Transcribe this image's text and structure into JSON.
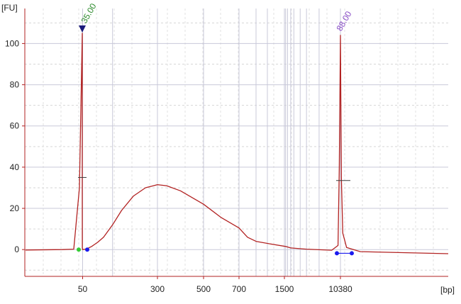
{
  "chart_data": {
    "type": "line",
    "y_unit": "[FU]",
    "x_unit": "[bp]",
    "ylim": [
      -13,
      117
    ],
    "y_ticks": [
      0,
      20,
      40,
      60,
      80,
      100
    ],
    "x_ticks": [
      {
        "label": "50",
        "bp": 50
      },
      {
        "label": "300",
        "bp": 300
      },
      {
        "label": "500",
        "bp": 500
      },
      {
        "label": "700",
        "bp": 700
      },
      {
        "label": "1500",
        "bp": 1500
      },
      {
        "label": "10380",
        "bp": 10380
      }
    ],
    "grid": true,
    "colors": {
      "trace": "#b22222",
      "grid": "#c9c9d9",
      "axis": "#b22222",
      "lower_marker_label": "#2e8b2e",
      "upper_marker_label": "#8a4fc7",
      "marker_triangle": "#1a1a7a",
      "start_point": "#33cc33",
      "end_point": "#1a1aee"
    },
    "peaks": [
      {
        "name": "lower_marker",
        "label": "35.00",
        "bp": 35,
        "height_fu": 105
      },
      {
        "name": "upper_marker",
        "label": "88.00",
        "bp": 10380,
        "height_fu": 104
      }
    ],
    "series": [
      {
        "points": [
          {
            "bp": 15,
            "fu": -0.2
          },
          {
            "bp": 28,
            "fu": 0.0
          },
          {
            "bp": 32,
            "fu": 0.2
          },
          {
            "bp": 34,
            "fu": 30
          },
          {
            "bp": 35,
            "fu": 105
          },
          {
            "bp": 36,
            "fu": 30
          },
          {
            "bp": 38,
            "fu": 0.8
          },
          {
            "bp": 50,
            "fu": 0.0
          },
          {
            "bp": 60,
            "fu": 0.2
          },
          {
            "bp": 70,
            "fu": 0.8
          },
          {
            "bp": 80,
            "fu": 1.5
          },
          {
            "bp": 90,
            "fu": 2.5
          },
          {
            "bp": 100,
            "fu": 3.5
          },
          {
            "bp": 120,
            "fu": 6
          },
          {
            "bp": 150,
            "fu": 12
          },
          {
            "bp": 180,
            "fu": 19
          },
          {
            "bp": 220,
            "fu": 26
          },
          {
            "bp": 260,
            "fu": 30
          },
          {
            "bp": 300,
            "fu": 31.5
          },
          {
            "bp": 340,
            "fu": 31
          },
          {
            "bp": 400,
            "fu": 28.5
          },
          {
            "bp": 500,
            "fu": 22
          },
          {
            "bp": 600,
            "fu": 15.5
          },
          {
            "bp": 700,
            "fu": 10.5
          },
          {
            "bp": 850,
            "fu": 6
          },
          {
            "bp": 1000,
            "fu": 4
          },
          {
            "bp": 1300,
            "fu": 2.5
          },
          {
            "bp": 1700,
            "fu": 1.5
          },
          {
            "bp": 2500,
            "fu": 0.8
          },
          {
            "bp": 5000,
            "fu": 0.2
          },
          {
            "bp": 9000,
            "fu": -0.3
          },
          {
            "bp": 10000,
            "fu": 2
          },
          {
            "bp": 10200,
            "fu": 40
          },
          {
            "bp": 10380,
            "fu": 104
          },
          {
            "bp": 10550,
            "fu": 35
          },
          {
            "bp": 10800,
            "fu": 8
          },
          {
            "bp": 11500,
            "fu": 1
          },
          {
            "bp": 14000,
            "fu": -1
          },
          {
            "bp": 30000,
            "fu": -2
          }
        ]
      }
    ]
  }
}
